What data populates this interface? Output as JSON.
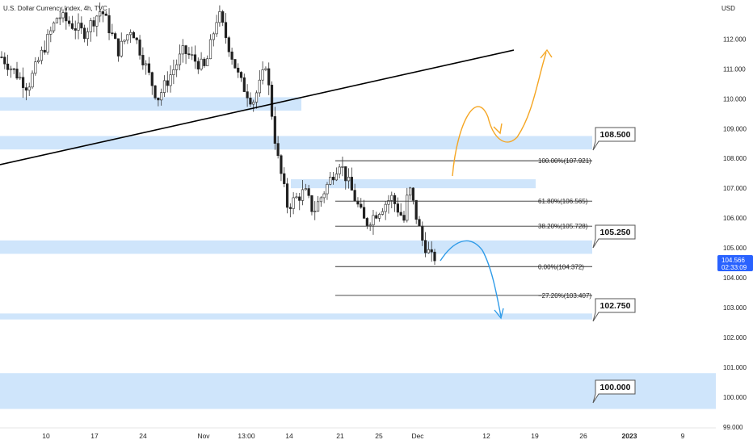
{
  "header": {
    "symbol_title": "U.S. Dollar Currency Index, 4h, TVC"
  },
  "price_axis": {
    "currency": "USD",
    "ticks": [
      "112.000",
      "111.000",
      "110.000",
      "109.000",
      "108.000",
      "107.000",
      "106.000",
      "105.000",
      "104.000",
      "103.000",
      "102.000",
      "101.000",
      "100.000",
      "99.000"
    ],
    "current_price": "104.566",
    "countdown": "02:33:09"
  },
  "time_axis": {
    "ticks": [
      "10",
      "17",
      "24",
      "Nov",
      "13:00",
      "14",
      "21",
      "25",
      "Dec",
      "12",
      "19",
      "26",
      "2023",
      "9"
    ],
    "bold_ticks": [
      "2023"
    ]
  },
  "colors": {
    "zone_fill": "#cfe5fb",
    "candle_up": "#3a3a3a",
    "candle_down": "#202020",
    "bullish_path": "#f5a623",
    "bearish_path": "#2f9be8",
    "price_badge_bg": "#2962ff",
    "trendline": "#000000",
    "fib_line": "#333333"
  },
  "chart_data": {
    "type": "candlestick",
    "title": "U.S. Dollar Currency Index, 4h, TVC",
    "y_unit": "USD",
    "ylim": [
      98.8,
      113.2
    ],
    "x_ticks": [
      "10",
      "17",
      "24",
      "Nov",
      "13:00",
      "14",
      "21",
      "25",
      "Dec",
      "12",
      "19",
      "26",
      "2023",
      "9"
    ],
    "trend_segments": [
      {
        "from": 0.0,
        "to": 0.06,
        "open": 111.4,
        "close": 110.4
      },
      {
        "from": 0.06,
        "to": 0.13,
        "open": 110.4,
        "close": 112.8
      },
      {
        "from": 0.13,
        "to": 0.19,
        "open": 112.8,
        "close": 112.2
      },
      {
        "from": 0.19,
        "to": 0.23,
        "open": 112.2,
        "close": 113.0
      },
      {
        "from": 0.23,
        "to": 0.27,
        "open": 113.0,
        "close": 111.6
      },
      {
        "from": 0.27,
        "to": 0.3,
        "open": 111.6,
        "close": 112.4
      },
      {
        "from": 0.3,
        "to": 0.36,
        "open": 112.4,
        "close": 110.0
      },
      {
        "from": 0.36,
        "to": 0.42,
        "open": 110.0,
        "close": 111.6
      },
      {
        "from": 0.42,
        "to": 0.47,
        "open": 111.6,
        "close": 111.0
      },
      {
        "from": 0.47,
        "to": 0.5,
        "open": 111.0,
        "close": 112.9
      },
      {
        "from": 0.5,
        "to": 0.55,
        "open": 112.9,
        "close": 110.6
      },
      {
        "from": 0.55,
        "to": 0.58,
        "open": 110.6,
        "close": 109.9
      },
      {
        "from": 0.58,
        "to": 0.6,
        "open": 109.9,
        "close": 110.6
      },
      {
        "from": 0.6,
        "to": 0.61,
        "open": 110.6,
        "close": 111.2
      },
      {
        "from": 0.61,
        "to": 0.635,
        "open": 111.2,
        "close": 108.2
      },
      {
        "from": 0.635,
        "to": 0.66,
        "open": 108.2,
        "close": 106.4
      },
      {
        "from": 0.66,
        "to": 0.7,
        "open": 106.4,
        "close": 106.9
      },
      {
        "from": 0.7,
        "to": 0.72,
        "open": 106.9,
        "close": 106.2
      },
      {
        "from": 0.72,
        "to": 0.78,
        "open": 106.2,
        "close": 107.9
      },
      {
        "from": 0.78,
        "to": 0.84,
        "open": 107.9,
        "close": 105.8
      },
      {
        "from": 0.84,
        "to": 0.9,
        "open": 105.8,
        "close": 106.7
      },
      {
        "from": 0.9,
        "to": 0.93,
        "open": 106.7,
        "close": 105.9
      },
      {
        "from": 0.93,
        "to": 0.94,
        "open": 105.9,
        "close": 107.1
      },
      {
        "from": 0.94,
        "to": 0.97,
        "open": 107.1,
        "close": 105.3
      },
      {
        "from": 0.97,
        "to": 1.0,
        "open": 105.3,
        "close": 104.45
      }
    ],
    "candle_count": 142,
    "last_close": 104.566,
    "zones": [
      {
        "name": "zone-110",
        "low": 109.6,
        "high": 110.05
      },
      {
        "name": "zone-108.5",
        "low": 108.3,
        "high": 108.75
      },
      {
        "name": "zone-107",
        "low": 107.0,
        "high": 107.3
      },
      {
        "name": "zone-105",
        "low": 104.8,
        "high": 105.25
      },
      {
        "name": "zone-102.75",
        "low": 102.6,
        "high": 102.8
      },
      {
        "name": "zone-100",
        "low": 99.6,
        "high": 100.8
      }
    ],
    "level_labels": [
      "108.500",
      "105.250",
      "102.750",
      "100.000"
    ],
    "fibonacci": [
      {
        "label": "100.00%(107.921)",
        "price": 107.921
      },
      {
        "label": "61.80%(106.565)",
        "price": 106.565
      },
      {
        "label": "38.20%(105.728)",
        "price": 105.728
      },
      {
        "label": "0.00%(104.372)",
        "price": 104.372
      },
      {
        "label": "−27.20%(103.407)",
        "price": 103.407
      }
    ],
    "trendline": {
      "start_price": 108.0,
      "end_price": 111.6
    },
    "projections": [
      {
        "name": "bullish",
        "description": "orange arrow up to ~111.6"
      },
      {
        "name": "bearish",
        "description": "blue arrow down to ~102.7"
      }
    ],
    "grid": false
  }
}
